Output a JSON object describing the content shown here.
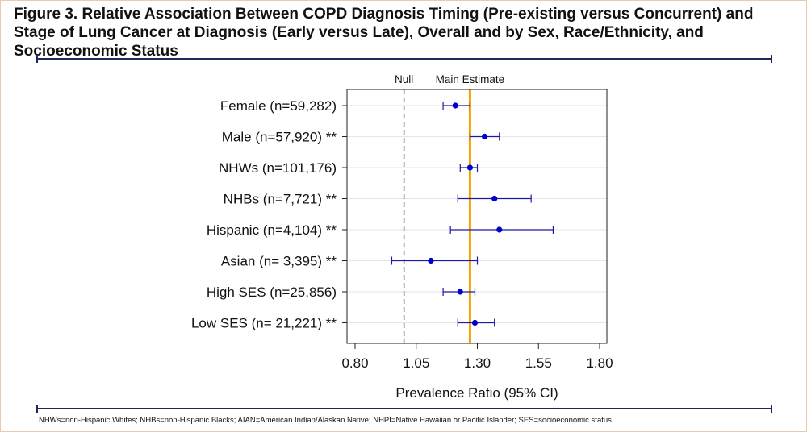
{
  "figure": {
    "title": "Figure 3. Relative Association Between COPD Diagnosis Timing (Pre-existing versus Concurrent) and Stage of Lung Cancer at Diagnosis (Early versus Late), Overall and by Sex, Race/Ethnicity, and Socioeconomic Status",
    "footnote": "NHWs=non-Hispanic Whites; NHBs=non-Hispanic Blacks; AIAN=American Indian/Alaskan Native; NHPI=Native Hawaiian or Pacific Islander; SES=socioeconomic status"
  },
  "colors": {
    "point": "#0000cc",
    "ci_line": "#1a1aa8",
    "main_estimate": "#f0a500",
    "null_line": "#333333",
    "rule": "#1f2a5a"
  },
  "chart_data": {
    "type": "scatter",
    "subtype": "forest-plot",
    "xlabel": "Prevalence Ratio (95% CI)",
    "xlim": [
      0.8,
      1.8
    ],
    "xticks": [
      0.8,
      1.05,
      1.3,
      1.55,
      1.8
    ],
    "xtick_labels": [
      "0.80",
      "1.05",
      "1.30",
      "1.55",
      "1.80"
    ],
    "grid": "horizontal",
    "reference_lines": [
      {
        "label": "Null",
        "value": 1.0,
        "style": "dashed"
      },
      {
        "label": "Main Estimate",
        "value": 1.27,
        "style": "solid"
      }
    ],
    "rows": [
      {
        "label": "Female (n=59,282)",
        "estimate": 1.21,
        "lower": 1.16,
        "upper": 1.27
      },
      {
        "label": "Male (n=57,920) **",
        "estimate": 1.33,
        "lower": 1.27,
        "upper": 1.39
      },
      {
        "label": "NHWs (n=101,176)",
        "estimate": 1.27,
        "lower": 1.23,
        "upper": 1.3
      },
      {
        "label": "NHBs (n=7,721) **",
        "estimate": 1.37,
        "lower": 1.22,
        "upper": 1.52
      },
      {
        "label": "Hispanic (n=4,104) **",
        "estimate": 1.39,
        "lower": 1.19,
        "upper": 1.61
      },
      {
        "label": "Asian (n= 3,395) **",
        "estimate": 1.11,
        "lower": 0.95,
        "upper": 1.3
      },
      {
        "label": "High SES (n=25,856)",
        "estimate": 1.23,
        "lower": 1.16,
        "upper": 1.29
      },
      {
        "label": "Low SES (n= 21,221) **",
        "estimate": 1.29,
        "lower": 1.22,
        "upper": 1.37
      }
    ]
  }
}
